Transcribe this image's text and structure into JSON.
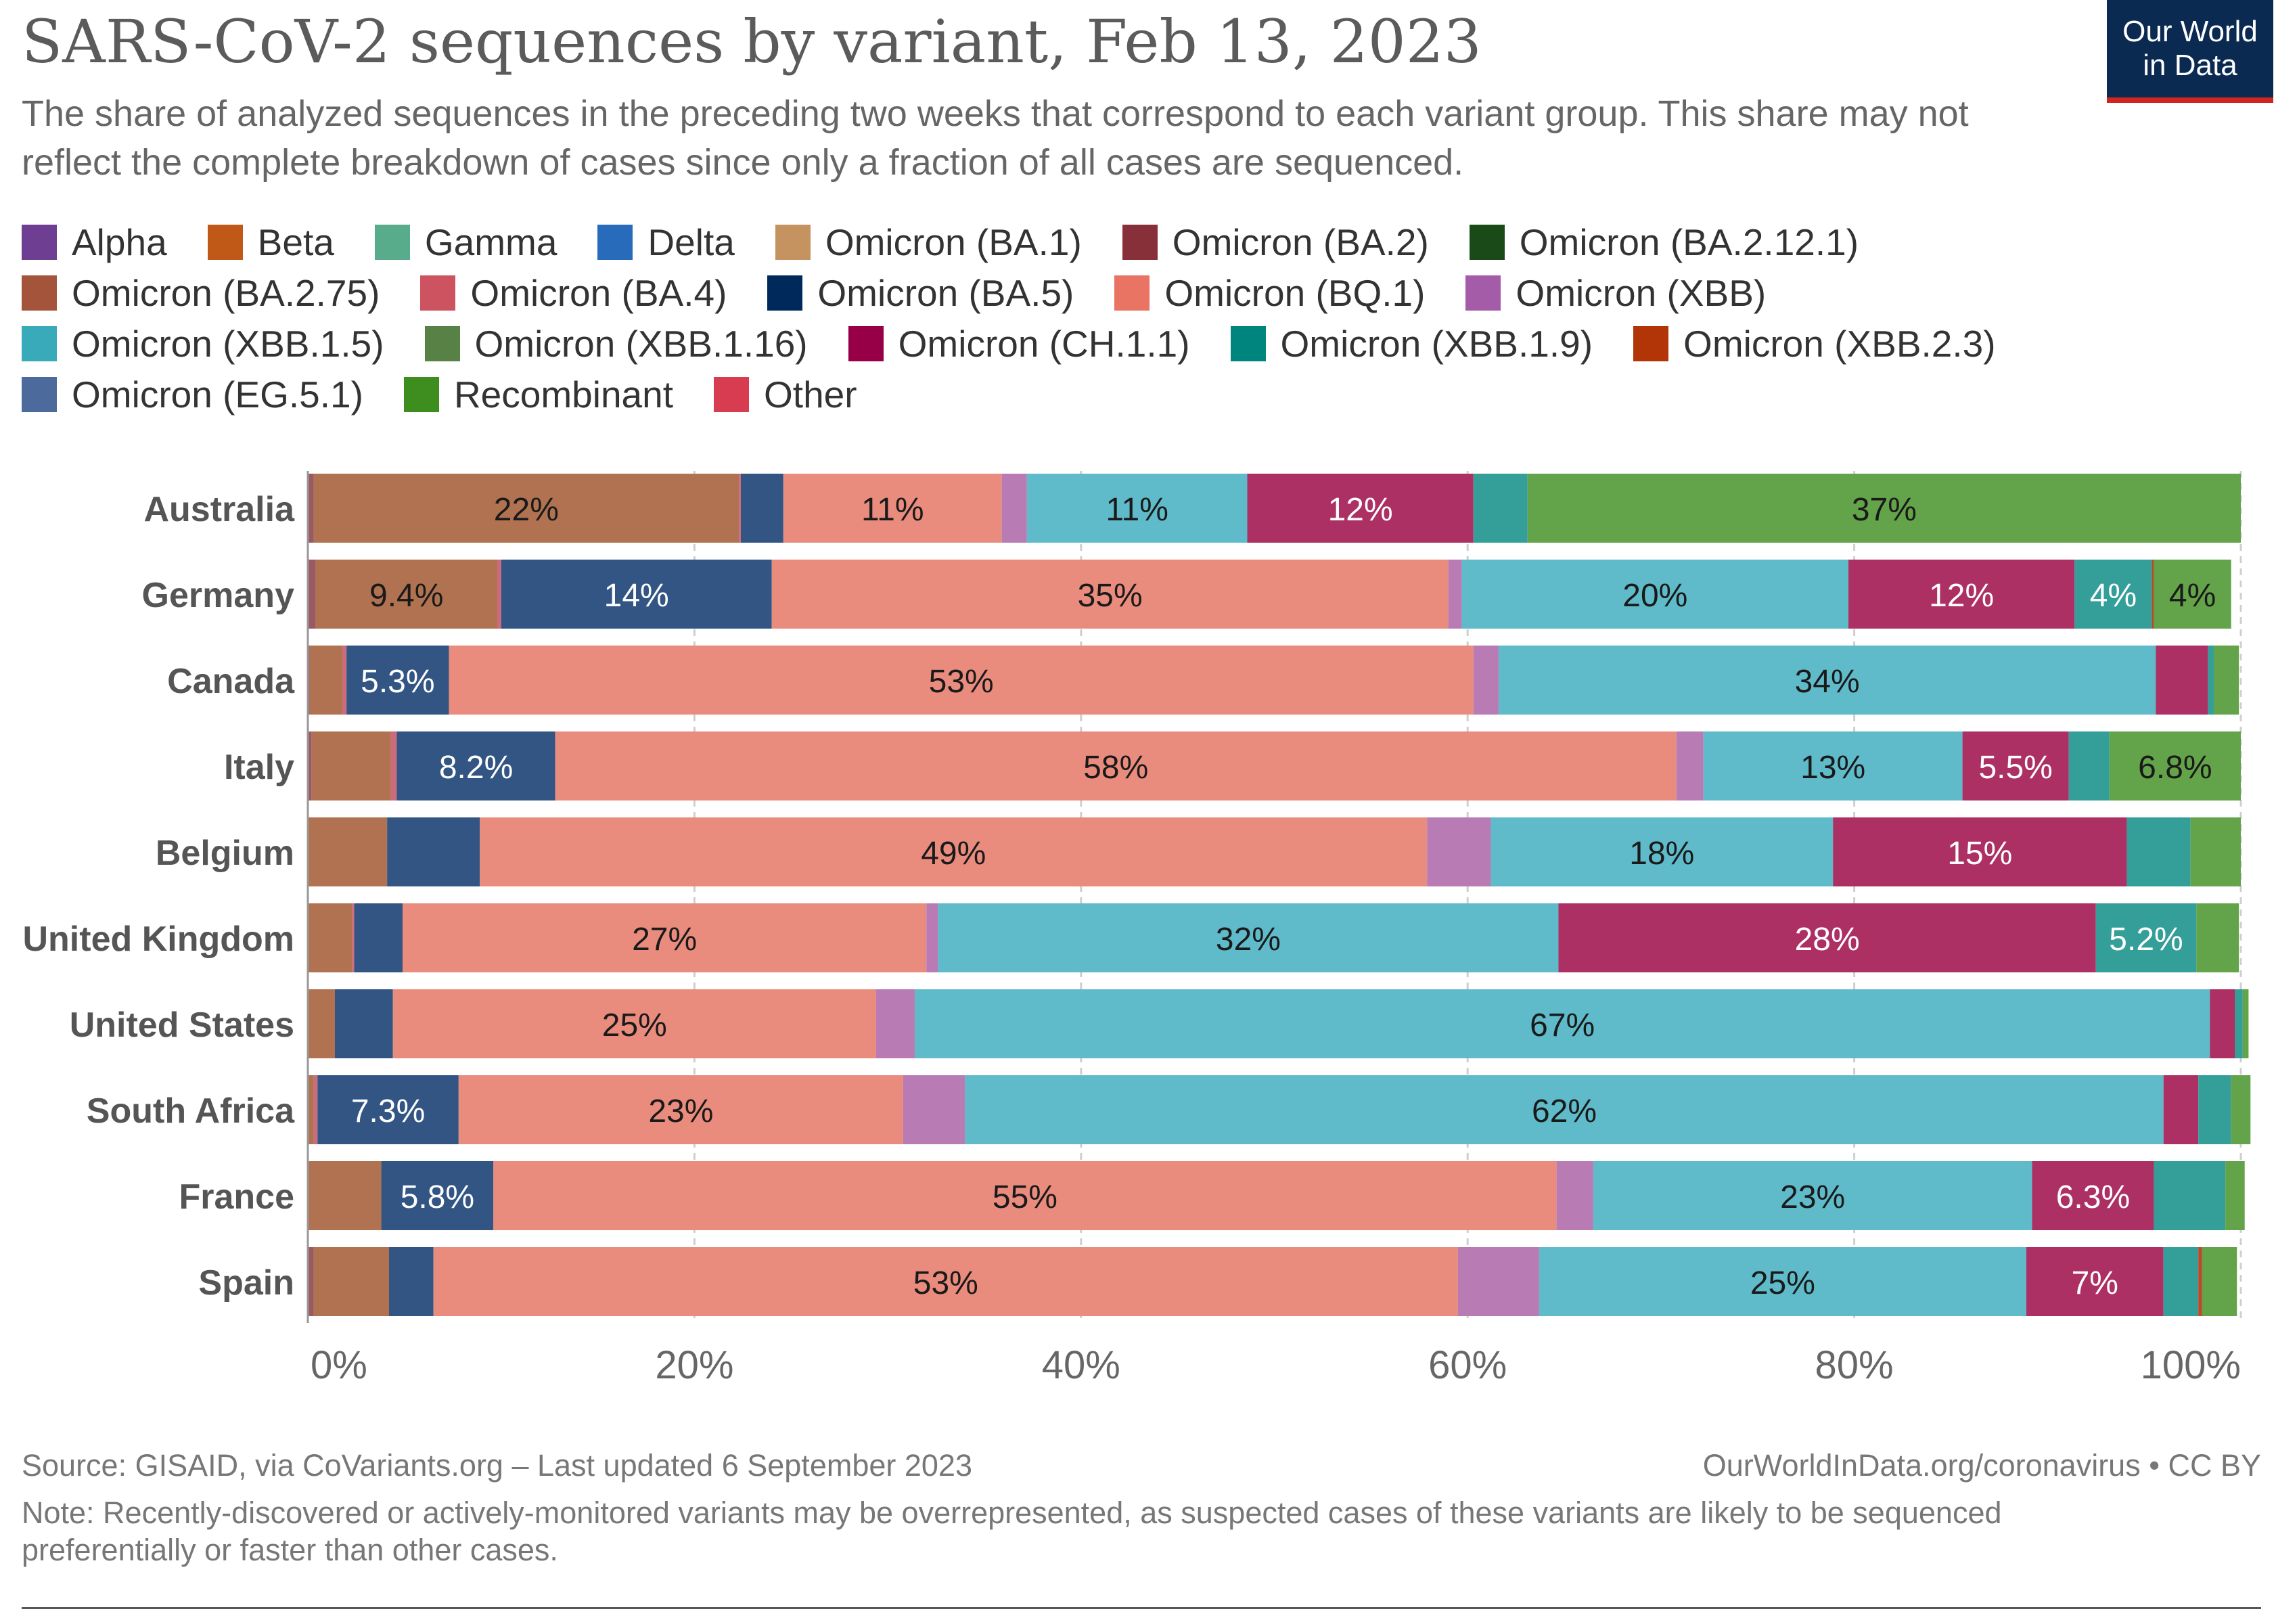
{
  "title": "SARS-CoV-2 sequences by variant, Feb 13, 2023",
  "subtitle": "The share of analyzed sequences in the preceding two weeks that correspond to each variant group. This share may not reflect the complete breakdown of cases since only a fraction of all cases are sequenced.",
  "logo": {
    "line1": "Our World",
    "line2": "in Data"
  },
  "footer": {
    "source": "Source: GISAID, via CoVariants.org – Last updated 6 September 2023",
    "site": "OurWorldInData.org/coronavirus • CC BY",
    "note": "Note: Recently-discovered or actively-monitored variants may be overrepresented, as suspected cases of these variants are likely to be sequenced preferentially or faster than other cases."
  },
  "legend_rows": [
    [
      {
        "label": "Alpha",
        "color": "#6d3e91"
      },
      {
        "label": "Beta",
        "color": "#c05917"
      },
      {
        "label": "Gamma",
        "color": "#58ac8c"
      },
      {
        "label": "Delta",
        "color": "#286bbb"
      },
      {
        "label": "Omicron (BA.1)",
        "color": "#c4935f"
      },
      {
        "label": "Omicron (BA.2)",
        "color": "#883039"
      },
      {
        "label": "Omicron (BA.2.12.1)",
        "color": "#194a17"
      }
    ],
    [
      {
        "label": "Omicron (BA.2.75)",
        "color": "#a3543b"
      },
      {
        "label": "Omicron (BA.4)",
        "color": "#cd5361"
      },
      {
        "label": "Omicron (BA.5)",
        "color": "#00295b"
      },
      {
        "label": "Omicron (BQ.1)",
        "color": "#e97463"
      },
      {
        "label": "Omicron (XBB)",
        "color": "#a45ba8"
      }
    ],
    [
      {
        "label": "Omicron (XBB.1.5)",
        "color": "#38aaba"
      },
      {
        "label": "Omicron (XBB.1.16)",
        "color": "#578145"
      },
      {
        "label": "Omicron (CH.1.1)",
        "color": "#970046"
      },
      {
        "label": "Omicron (XBB.1.9)",
        "color": "#00847e"
      },
      {
        "label": "Omicron (XBB.2.3)",
        "color": "#b13507"
      }
    ],
    [
      {
        "label": "Omicron (EG.5.1)",
        "color": "#4c6a9c"
      },
      {
        "label": "Recombinant",
        "color": "#3d8d1f"
      },
      {
        "label": "Other",
        "color": "#d73c50"
      }
    ]
  ],
  "chart_data": {
    "type": "bar",
    "orientation": "horizontal",
    "stacked": true,
    "xlim": [
      0,
      100
    ],
    "x_ticks": [
      "0%",
      "20%",
      "40%",
      "60%",
      "80%",
      "100%"
    ],
    "grid": true,
    "categories": [
      "Australia",
      "Germany",
      "Canada",
      "Italy",
      "Belgium",
      "United Kingdom",
      "United States",
      "South Africa",
      "France",
      "Spain"
    ],
    "series": [
      {
        "name": "Omicron (BA.2)",
        "color": "#9b5a63",
        "values": [
          0.3,
          0.4,
          0.1,
          0.2,
          0,
          0,
          0,
          0,
          0,
          0.3
        ]
      },
      {
        "name": "Omicron (BA.2.75)",
        "color": "#b07250",
        "values": [
          22,
          9.4,
          1.7,
          4.1,
          4.1,
          2.3,
          1.4,
          0.3,
          3.8,
          3.9
        ]
      },
      {
        "name": "Omicron (BA.4)",
        "color": "#cd6b7b",
        "values": [
          0.1,
          0.2,
          0.2,
          0.3,
          0,
          0.1,
          0,
          0.2,
          0,
          0
        ]
      },
      {
        "name": "Omicron (BA.5)",
        "color": "#325583",
        "values": [
          2.2,
          14,
          5.3,
          8.2,
          4.8,
          2.5,
          3,
          7.3,
          5.8,
          2.3
        ]
      },
      {
        "name": "Omicron (BQ.1)",
        "color": "#ea8c7d",
        "values": [
          11.3,
          35,
          53,
          58,
          49,
          27.1,
          25,
          23,
          55,
          53
        ]
      },
      {
        "name": "Omicron (XBB)",
        "color": "#b87bb3",
        "values": [
          1.3,
          0.7,
          1.3,
          1.4,
          3.3,
          0.6,
          2,
          3.2,
          1.9,
          4.2
        ]
      },
      {
        "name": "Omicron (XBB.1.5)",
        "color": "#5fbbca",
        "values": [
          11.4,
          20,
          34,
          13.4,
          17.7,
          32.1,
          67,
          62,
          22.7,
          25.2
        ]
      },
      {
        "name": "Omicron (CH.1.1)",
        "color": "#ad3065",
        "values": [
          11.7,
          11.7,
          2.7,
          5.5,
          15.2,
          27.8,
          1.3,
          1.8,
          6.3,
          7.1
        ]
      },
      {
        "name": "Omicron (XBB.1.9)",
        "color": "#349e99",
        "values": [
          2.8,
          4,
          0.3,
          2.1,
          3.3,
          5.2,
          0.4,
          1.7,
          3.7,
          1.8
        ]
      },
      {
        "name": "Omicron (XBB.2.3)",
        "color": "#b94a2a",
        "values": [
          0,
          0.1,
          0,
          0,
          0,
          0,
          0,
          0,
          0,
          0.2
        ]
      },
      {
        "name": "Recombinant",
        "color": "#63a349",
        "values": [
          36.9,
          4,
          1.3,
          6.8,
          2.6,
          2.2,
          0.3,
          1,
          1,
          1.8
        ]
      }
    ],
    "data_labels": [
      [
        {
          "series": 1,
          "text": "22%"
        },
        {
          "series": 4,
          "text": "11%"
        },
        {
          "series": 6,
          "text": "11%"
        },
        {
          "series": 7,
          "text": "12%"
        },
        {
          "series": 10,
          "text": "37%"
        }
      ],
      [
        {
          "series": 1,
          "text": "9.4%"
        },
        {
          "series": 3,
          "text": "14%"
        },
        {
          "series": 4,
          "text": "35%"
        },
        {
          "series": 6,
          "text": "20%"
        },
        {
          "series": 7,
          "text": "12%"
        },
        {
          "series": 8,
          "text": "4%"
        },
        {
          "series": 10,
          "text": "4%"
        }
      ],
      [
        {
          "series": 3,
          "text": "5.3%"
        },
        {
          "series": 4,
          "text": "53%"
        },
        {
          "series": 6,
          "text": "34%"
        }
      ],
      [
        {
          "series": 3,
          "text": "8.2%"
        },
        {
          "series": 4,
          "text": "58%"
        },
        {
          "series": 6,
          "text": "13%"
        },
        {
          "series": 7,
          "text": "5.5%"
        },
        {
          "series": 10,
          "text": "6.8%"
        }
      ],
      [
        {
          "series": 4,
          "text": "49%"
        },
        {
          "series": 6,
          "text": "18%"
        },
        {
          "series": 7,
          "text": "15%"
        }
      ],
      [
        {
          "series": 4,
          "text": "27%"
        },
        {
          "series": 6,
          "text": "32%"
        },
        {
          "series": 7,
          "text": "28%"
        },
        {
          "series": 8,
          "text": "5.2%"
        }
      ],
      [
        {
          "series": 4,
          "text": "25%"
        },
        {
          "series": 6,
          "text": "67%"
        }
      ],
      [
        {
          "series": 3,
          "text": "7.3%"
        },
        {
          "series": 4,
          "text": "23%"
        },
        {
          "series": 6,
          "text": "62%"
        }
      ],
      [
        {
          "series": 3,
          "text": "5.8%"
        },
        {
          "series": 4,
          "text": "55%"
        },
        {
          "series": 6,
          "text": "23%"
        },
        {
          "series": 7,
          "text": "6.3%"
        }
      ],
      [
        {
          "series": 4,
          "text": "53%"
        },
        {
          "series": 6,
          "text": "25%"
        },
        {
          "series": 7,
          "text": "7%"
        }
      ]
    ]
  }
}
